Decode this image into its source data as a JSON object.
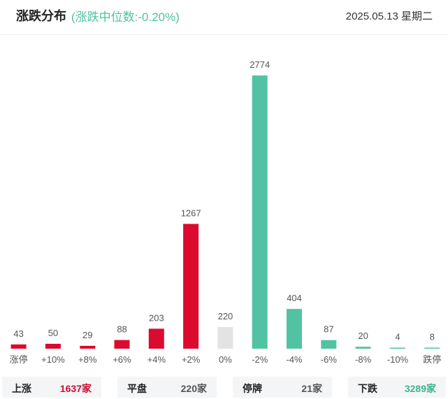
{
  "header": {
    "title": "涨跌分布",
    "subtitle": "(涨跌中位数:-0.20%)",
    "date": "2025.05.13 星期二"
  },
  "colors": {
    "up": "#dc0a2f",
    "down": "#52c3a2",
    "flat": "#e3e3e3",
    "stat_up": "#c8102e",
    "stat_down": "#3db38a",
    "stat_neutral": "#555555"
  },
  "chart_data": {
    "type": "bar",
    "categories": [
      "涨停",
      "+10%",
      "+8%",
      "+6%",
      "+4%",
      "+2%",
      "0%",
      "-2%",
      "-4%",
      "-6%",
      "-8%",
      "-10%",
      "跌停"
    ],
    "values": [
      43,
      50,
      29,
      88,
      203,
      1267,
      220,
      2774,
      404,
      87,
      20,
      4,
      8
    ],
    "bar_colors": [
      "up",
      "up",
      "up",
      "up",
      "up",
      "up",
      "flat",
      "down",
      "down",
      "down",
      "down",
      "down",
      "down"
    ],
    "ylim": [
      0,
      2774
    ]
  },
  "stats": [
    {
      "label": "上涨",
      "value": "1637家",
      "color": "stat_up"
    },
    {
      "label": "平盘",
      "value": "220家",
      "color": "stat_neutral"
    },
    {
      "label": "停牌",
      "value": "21家",
      "color": "stat_neutral"
    },
    {
      "label": "下跌",
      "value": "3289家",
      "color": "stat_down"
    }
  ]
}
